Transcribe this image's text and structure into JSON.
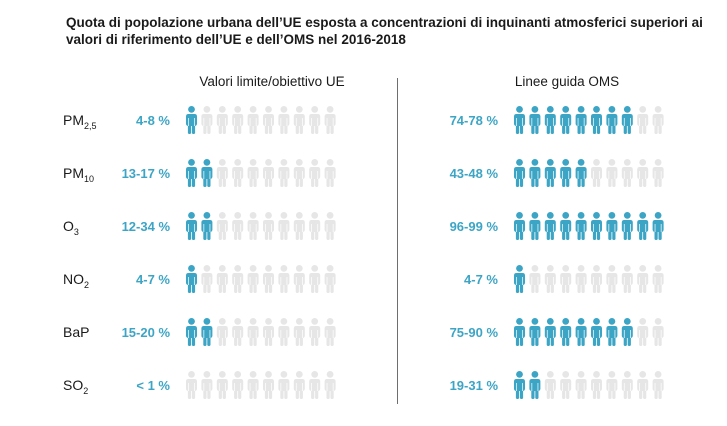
{
  "title": "Quota di popolazione urbana dell’UE esposta a concentrazioni di inquinanti atmosferici superiori ai valori di riferimento dell’UE e dell’OMS nel 2016-2018",
  "colors": {
    "filled": "#3ca5c5",
    "empty": "#e6e6e6",
    "text": "#1a1a1a",
    "divider": "#6e6e6e"
  },
  "chart_data": {
    "type": "pictogram",
    "icons_per_row": 10,
    "panels": [
      {
        "name": "Valori limite/obiettivo UE"
      },
      {
        "name": "Linee guida OMS"
      }
    ],
    "rows": [
      {
        "pollutant_main": "PM",
        "pollutant_sub": "2,5",
        "eu_label": "4-8 %",
        "eu_filled": 1,
        "who_label": "74-78 %",
        "who_filled": 8
      },
      {
        "pollutant_main": "PM",
        "pollutant_sub": "10",
        "eu_label": "13-17 %",
        "eu_filled": 2,
        "who_label": "43-48 %",
        "who_filled": 5
      },
      {
        "pollutant_main": "O",
        "pollutant_sub": "3",
        "eu_label": "12-34 %",
        "eu_filled": 2,
        "who_label": "96-99 %",
        "who_filled": 10
      },
      {
        "pollutant_main": "NO",
        "pollutant_sub": "2",
        "eu_label": "4-7 %",
        "eu_filled": 1,
        "who_label": "4-7 %",
        "who_filled": 1
      },
      {
        "pollutant_main": "BaP",
        "pollutant_sub": "",
        "eu_label": "15-20 %",
        "eu_filled": 2,
        "who_label": "75-90 %",
        "who_filled": 8
      },
      {
        "pollutant_main": "SO",
        "pollutant_sub": "2",
        "eu_label": "< 1 %",
        "eu_filled": 0,
        "who_label": "19-31 %",
        "who_filled": 2
      }
    ]
  }
}
